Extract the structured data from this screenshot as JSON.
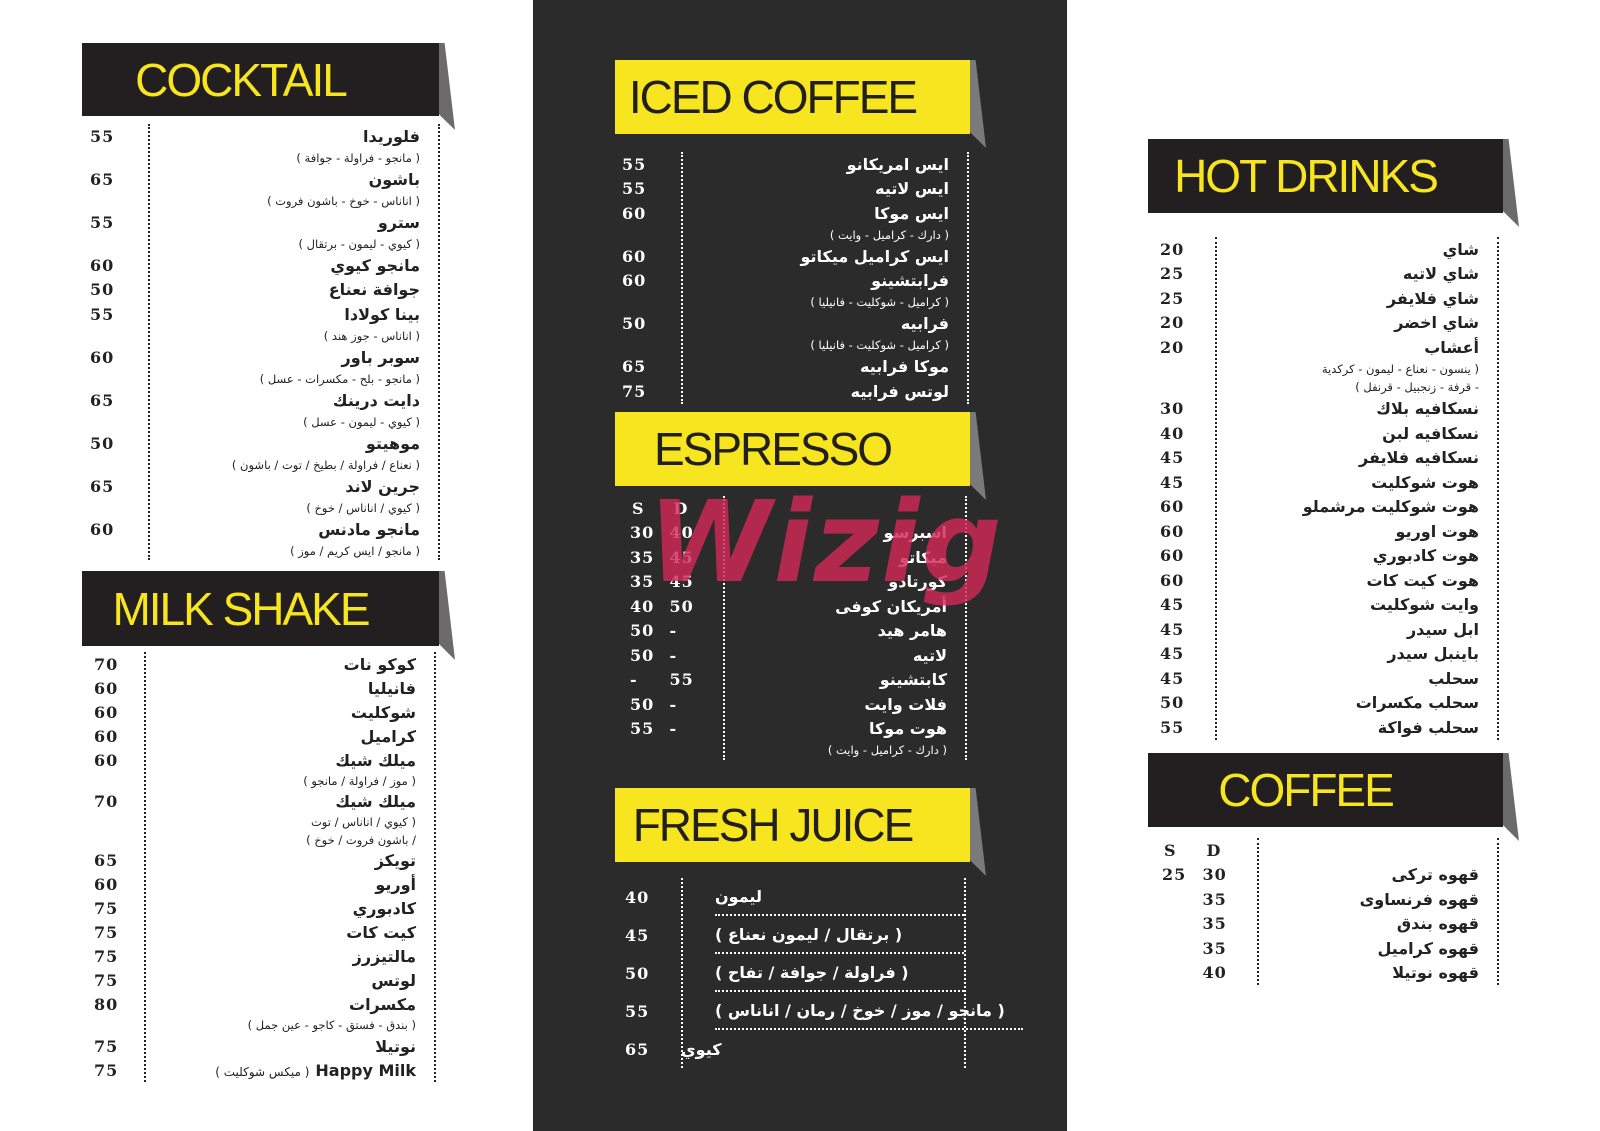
{
  "watermark": "Wizig",
  "sections": [
    {
      "title": "COCKTAIL",
      "items": [
        {
          "name": "فلوريدا",
          "prices": [
            "55"
          ],
          "desc": [
            "( مانجو - فراولة - جوافة )"
          ]
        },
        {
          "name": "باشون",
          "prices": [
            "65"
          ],
          "desc": [
            "( اناناس - خوخ - باشون فروت )"
          ]
        },
        {
          "name": "سترو",
          "prices": [
            "55"
          ],
          "desc": [
            "( كيوي - ليمون - برتقال )"
          ]
        },
        {
          "name": "مانجو كيوي",
          "prices": [
            "60"
          ]
        },
        {
          "name": "جوافة نعناع",
          "prices": [
            "50"
          ]
        },
        {
          "name": "بينا كولادا",
          "prices": [
            "55"
          ],
          "desc": [
            "( اناناس - جوز هند )"
          ]
        },
        {
          "name": "سوبر باور",
          "prices": [
            "60"
          ],
          "desc": [
            "( مانجو - بلح - مكسرات - عسل )"
          ]
        },
        {
          "name": "دايت درينك",
          "prices": [
            "65"
          ],
          "desc": [
            "( كيوي - ليمون - عسل )"
          ]
        },
        {
          "name": "موهيتو",
          "prices": [
            "50"
          ],
          "desc": [
            "( نعناع / فراولة / بطيخ / توت / باشون )"
          ]
        },
        {
          "name": "جرين لاند",
          "prices": [
            "65"
          ],
          "desc": [
            "( كيوي / اناناس / خوخ )"
          ]
        },
        {
          "name": "مانجو مادنس",
          "prices": [
            "60"
          ],
          "desc": [
            "( مانجو / ايس كريم / موز )"
          ]
        }
      ]
    },
    {
      "title": "MILK SHAKE",
      "items": [
        {
          "name": "كوكو نات",
          "prices": [
            "70"
          ]
        },
        {
          "name": "فانيليا",
          "prices": [
            "60"
          ]
        },
        {
          "name": "شوكليت",
          "prices": [
            "60"
          ]
        },
        {
          "name": "كراميل",
          "prices": [
            "60"
          ]
        },
        {
          "name": "ميلك شيك",
          "prices": [
            "60"
          ],
          "desc": [
            "( موز / فراولة / مانجو )"
          ]
        },
        {
          "name": "ميلك شيك",
          "prices": [
            "70"
          ],
          "desc": [
            "( كيوي / اناناس / توت",
            "/ باشون فروت / خوخ )"
          ]
        },
        {
          "name": "تويكز",
          "prices": [
            "65"
          ]
        },
        {
          "name": "أوريو",
          "prices": [
            "60"
          ]
        },
        {
          "name": "كادبوري",
          "prices": [
            "75"
          ]
        },
        {
          "name": "كيت كات",
          "prices": [
            "75"
          ]
        },
        {
          "name": "مالتيزرز",
          "prices": [
            "75"
          ]
        },
        {
          "name": "لوتس",
          "prices": [
            "75"
          ]
        },
        {
          "name": "مكسرات",
          "prices": [
            "80"
          ],
          "desc": [
            "( بندق - فستق - كاجو - عين جمل )"
          ]
        },
        {
          "name": "نوتيلا",
          "prices": [
            "75"
          ]
        },
        {
          "name": "Happy Milk",
          "prices": [
            "75"
          ],
          "note": "( ميكس شوكليت )"
        }
      ]
    },
    {
      "title": "ICED COFFEE",
      "items": [
        {
          "name": "ايس امريكانو",
          "prices": [
            "55"
          ]
        },
        {
          "name": "ايس لاتيه",
          "prices": [
            "55"
          ]
        },
        {
          "name": "ايس موكا",
          "prices": [
            "60"
          ],
          "desc": [
            "( دارك - كراميل - وايت )"
          ]
        },
        {
          "name": "ايس كراميل ميكاتو",
          "prices": [
            "60"
          ]
        },
        {
          "name": "فرابتشينو",
          "prices": [
            "60"
          ],
          "desc": [
            "( كراميل - شوكليت - فانيليا )"
          ]
        },
        {
          "name": "فرابيه",
          "prices": [
            "50"
          ],
          "desc": [
            "( كراميل - شوكليت - فانيليا )"
          ]
        },
        {
          "name": "موكا فرابيه",
          "prices": [
            "65"
          ]
        },
        {
          "name": "لوتس فرابيه",
          "prices": [
            "75"
          ]
        }
      ]
    },
    {
      "title": "ESPRESSO",
      "columns": [
        "S",
        "D"
      ],
      "items": [
        {
          "name": "اسبرسو",
          "prices": [
            "30",
            "40"
          ]
        },
        {
          "name": "ميكاتو",
          "prices": [
            "35",
            "45"
          ]
        },
        {
          "name": "كورتادو",
          "prices": [
            "35",
            "45"
          ]
        },
        {
          "name": "أمريكان كوفى",
          "prices": [
            "40",
            "50"
          ]
        },
        {
          "name": "هامر هيد",
          "prices": [
            "50",
            "-"
          ]
        },
        {
          "name": "لاتيه",
          "prices": [
            "50",
            "-"
          ]
        },
        {
          "name": "كابتشينو",
          "prices": [
            "-",
            "55"
          ]
        },
        {
          "name": "فلات وايت",
          "prices": [
            "50",
            "-"
          ]
        },
        {
          "name": "هوت موكا",
          "prices": [
            "55",
            "-"
          ],
          "desc": [
            "( دارك - كراميل - وايت )"
          ]
        }
      ]
    },
    {
      "title": "FRESH JUICE",
      "items": [
        {
          "name": "ليمون",
          "prices": [
            "40"
          ]
        },
        {
          "name": "( برتقال / ليمون نعناع )",
          "prices": [
            "45"
          ]
        },
        {
          "name": "( فراولة / جوافة / تفاح )",
          "prices": [
            "50"
          ]
        },
        {
          "name": "( مانجو / موز / خوخ / رمان / اناناس )",
          "prices": [
            "55"
          ]
        },
        {
          "name": "كيوي",
          "prices": [
            "65"
          ]
        }
      ]
    },
    {
      "title": "HOT DRINKS",
      "items": [
        {
          "name": "شاي",
          "prices": [
            "20"
          ]
        },
        {
          "name": "شاي لاتيه",
          "prices": [
            "25"
          ]
        },
        {
          "name": "شاي فلايفر",
          "prices": [
            "25"
          ]
        },
        {
          "name": "شاي اخضر",
          "prices": [
            "20"
          ]
        },
        {
          "name": "أعشاب",
          "prices": [
            "20"
          ],
          "desc": [
            "( ينسون - نعناع - ليمون - كركدية",
            "- قرفة - زنجبيل - قرنفل )"
          ]
        },
        {
          "name": "نسكافيه بلاك",
          "prices": [
            "30"
          ]
        },
        {
          "name": "نسكافيه لبن",
          "prices": [
            "40"
          ]
        },
        {
          "name": "نسكافيه فلايفر",
          "prices": [
            "45"
          ]
        },
        {
          "name": "هوت شوكليت",
          "prices": [
            "45"
          ]
        },
        {
          "name": "هوت شوكليت مرشملو",
          "prices": [
            "60"
          ]
        },
        {
          "name": "هوت اوريو",
          "prices": [
            "60"
          ]
        },
        {
          "name": "هوت كادبوري",
          "prices": [
            "60"
          ]
        },
        {
          "name": "هوت كيت كات",
          "prices": [
            "60"
          ]
        },
        {
          "name": "وايت شوكليت",
          "prices": [
            "45"
          ]
        },
        {
          "name": "ابل سيدر",
          "prices": [
            "45"
          ]
        },
        {
          "name": "باينبل سيدر",
          "prices": [
            "45"
          ]
        },
        {
          "name": "سحلب",
          "prices": [
            "45"
          ]
        },
        {
          "name": "سحلب مكسرات",
          "prices": [
            "50"
          ]
        },
        {
          "name": "سحلب فواكة",
          "prices": [
            "55"
          ]
        }
      ]
    },
    {
      "title": "COFFEE",
      "columns": [
        "S",
        "D"
      ],
      "items": [
        {
          "name": "قهوه تركى",
          "prices": [
            "25",
            "30"
          ]
        },
        {
          "name": "قهوه فرنساوى",
          "prices": [
            null,
            "35"
          ]
        },
        {
          "name": "قهوه بندق",
          "prices": [
            null,
            "35"
          ]
        },
        {
          "name": "قهوه كراميل",
          "prices": [
            null,
            "35"
          ]
        },
        {
          "name": "قهوه نوتيلا",
          "prices": [
            null,
            "40"
          ]
        }
      ]
    }
  ]
}
